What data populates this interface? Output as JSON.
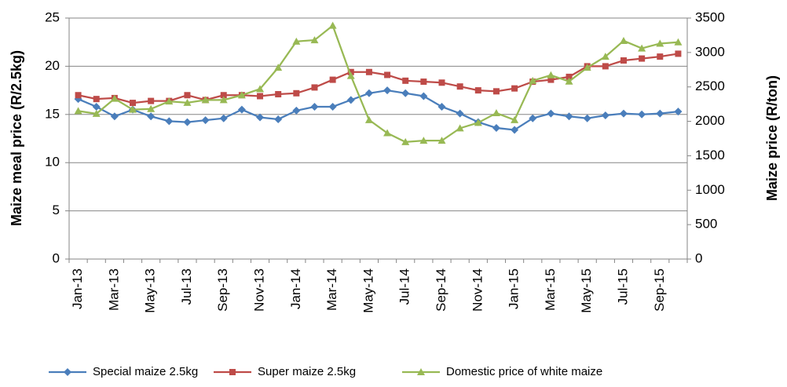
{
  "chart_data": {
    "type": "line",
    "y_label": "Maize meal price (R/2.5kg)",
    "y2_label": "Maize price (R/ton)",
    "categories": [
      "Jan-13",
      null,
      "Mar-13",
      null,
      "May-13",
      null,
      "Jul-13",
      null,
      "Sep-13",
      null,
      "Nov-13",
      null,
      "Jan-14",
      null,
      "Mar-14",
      null,
      "May-14",
      null,
      "Jul-14",
      null,
      "Sep-14",
      null,
      "Nov-14",
      null,
      "Jan-15",
      null,
      "Mar-15",
      null,
      "May-15",
      null,
      "Jul-15",
      null,
      "Sep-15",
      null
    ],
    "ylim": [
      0,
      25
    ],
    "yticks": [
      0,
      5,
      10,
      15,
      20,
      25
    ],
    "y2lim": [
      0,
      3500
    ],
    "y2ticks": [
      0,
      500,
      1000,
      1500,
      2000,
      2500,
      3000,
      3500
    ],
    "grid": true,
    "legend": "bottom",
    "series": [
      {
        "name": "Special maize 2.5kg",
        "color": "#4a7ebb",
        "marker": "diamond",
        "values": [
          16.6,
          15.8,
          14.8,
          15.5,
          14.8,
          14.3,
          14.2,
          14.4,
          14.6,
          15.5,
          14.7,
          14.5,
          15.4,
          15.8,
          15.8,
          16.5,
          17.2,
          17.5,
          17.2,
          16.9,
          15.8,
          15.1,
          14.2,
          13.6,
          13.4,
          14.6,
          15.1,
          14.8,
          14.6,
          14.9,
          15.1,
          15.0,
          15.1,
          15.3
        ]
      },
      {
        "name": "Super maize 2.5kg",
        "color": "#be4b48",
        "marker": "square",
        "values": [
          17.0,
          16.6,
          16.7,
          16.2,
          16.4,
          16.4,
          17.0,
          16.5,
          17.0,
          17.0,
          16.9,
          17.1,
          17.2,
          17.8,
          18.6,
          19.4,
          19.4,
          19.1,
          18.5,
          18.4,
          18.3,
          17.9,
          17.5,
          17.4,
          17.7,
          18.4,
          18.6,
          18.9,
          20.0,
          20.0,
          20.6,
          20.8,
          21.0,
          21.3
        ]
      },
      {
        "name": "Domestic price of white maize",
        "color": "#98b954",
        "marker": "triangle",
        "axis": "y2",
        "values": [
          2150,
          2110,
          2330,
          2170,
          2180,
          2290,
          2270,
          2310,
          2310,
          2380,
          2470,
          2780,
          3160,
          3180,
          3390,
          2660,
          2020,
          1830,
          1700,
          1720,
          1720,
          1900,
          1980,
          2120,
          2020,
          2590,
          2670,
          2580,
          2780,
          2940,
          3170,
          3060,
          3130,
          3150
        ]
      }
    ]
  }
}
